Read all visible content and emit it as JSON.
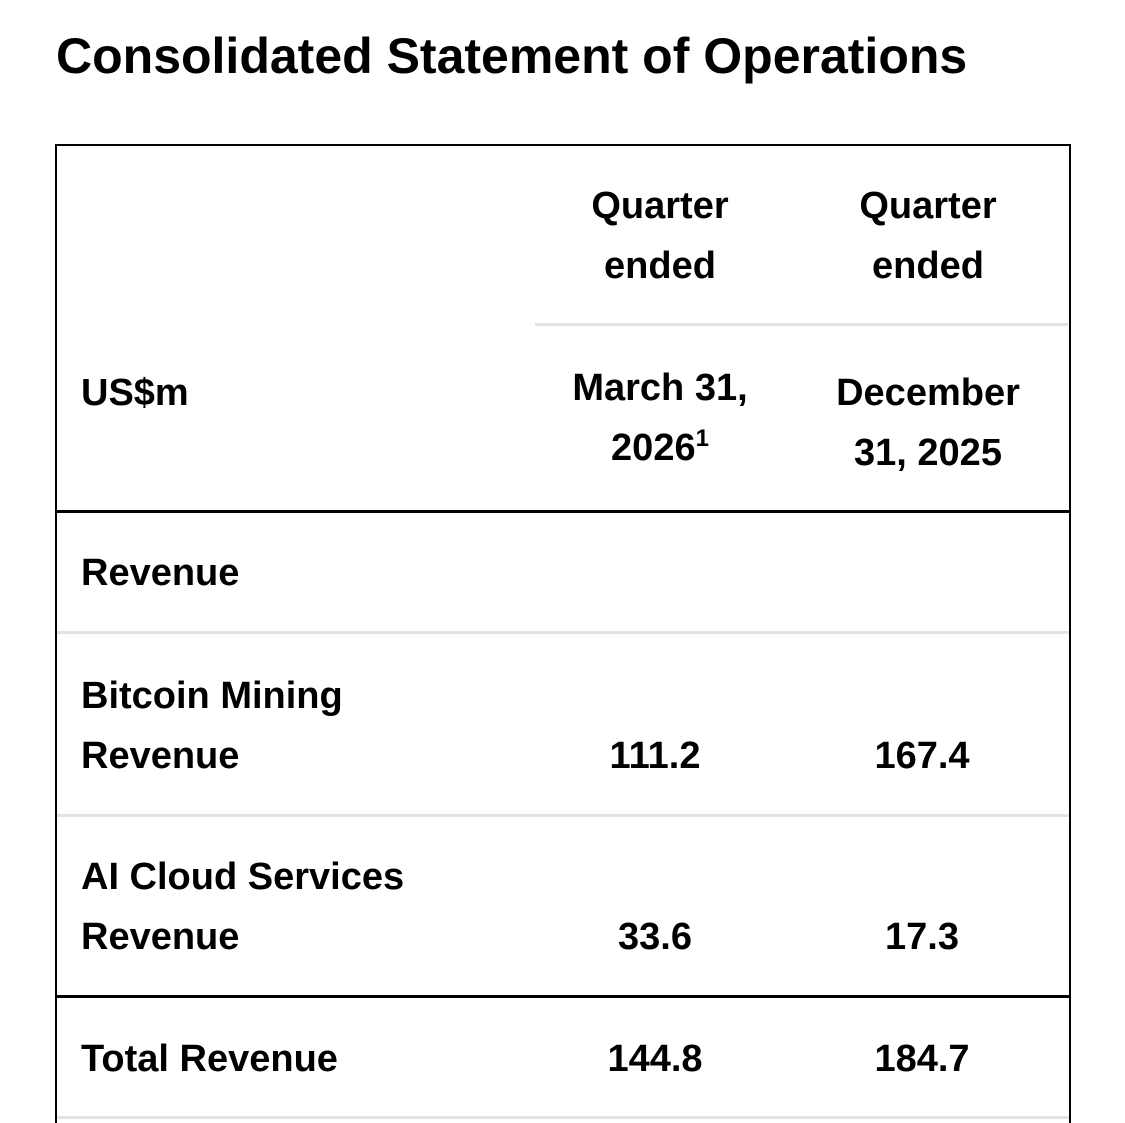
{
  "title": "Consolidated Statement of Operations",
  "header": {
    "unit_label": "US$m",
    "col1": {
      "top_line1": "Quarter",
      "top_line2": "ended",
      "date_line1": "March 31,",
      "date_line2": "2026",
      "footnote": "1"
    },
    "col2": {
      "top_line1": "Quarter",
      "top_line2": "ended",
      "date_line1": "December",
      "date_line2": "31, 2025"
    }
  },
  "rows": {
    "revenue_section": {
      "label": "Revenue"
    },
    "bitcoin": {
      "label_line1": "Bitcoin Mining",
      "label_line2": "Revenue",
      "q1_2026": "111.2",
      "q4_2025": "167.4"
    },
    "ai_cloud": {
      "label_line1": "AI Cloud Services",
      "label_line2": "Revenue",
      "q1_2026": "33.6",
      "q4_2025": "17.3"
    },
    "total": {
      "label": "Total Revenue",
      "q1_2026": "144.8",
      "q4_2025": "184.7"
    }
  }
}
